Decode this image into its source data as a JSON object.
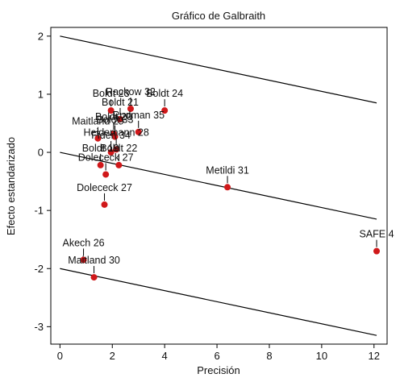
{
  "chart_data": {
    "type": "scatter",
    "title": "Gráfico de Galbraith",
    "xlabel": "Precisión",
    "ylabel": "Efecto estandarizado",
    "xlim": [
      -0.35,
      12.5
    ],
    "ylim": [
      -3.3,
      2.15
    ],
    "x_ticks": [
      0,
      2,
      4,
      6,
      8,
      10,
      12
    ],
    "y_ticks": [
      -3,
      -2,
      -1,
      0,
      1,
      2
    ],
    "grid": false,
    "colors": {
      "point": "#d0181a",
      "line": "#000000",
      "frame": "#000000"
    },
    "lines": [
      {
        "x": [
          0,
          12.1
        ],
        "y": [
          2.0,
          0.85
        ]
      },
      {
        "x": [
          0,
          12.1
        ],
        "y": [
          0.0,
          -1.15
        ]
      },
      {
        "x": [
          0,
          12.1
        ],
        "y": [
          -2.0,
          -3.15
        ]
      }
    ],
    "points": [
      {
        "label": "Boldt 23",
        "x": 1.95,
        "y": 0.72
      },
      {
        "label": "Rackow 32",
        "x": 2.7,
        "y": 0.75
      },
      {
        "label": "Boldt 24",
        "x": 4.0,
        "y": 0.72
      },
      {
        "label": "Boldt 21",
        "x": 2.3,
        "y": 0.57
      },
      {
        "label": "Rudman 35",
        "x": 3.0,
        "y": 0.35
      },
      {
        "label": "Maitland 29",
        "x": 1.45,
        "y": 0.24
      },
      {
        "label": "Boldt 20",
        "x": 2.05,
        "y": 0.32
      },
      {
        "label": "Boldt 33",
        "x": 2.1,
        "y": 0.27
      },
      {
        "label": "Heidemann 28",
        "x": 2.15,
        "y": 0.05
      },
      {
        "label": "Fiden 34",
        "x": 1.95,
        "y": 0.0
      },
      {
        "label": "Boldt 19",
        "x": 1.55,
        "y": -0.22
      },
      {
        "label": "Boldt 22",
        "x": 2.25,
        "y": -0.22
      },
      {
        "label": "Dolececk 27",
        "x": 1.75,
        "y": -0.38
      },
      {
        "label": "Dolececk 27",
        "x": 1.7,
        "y": -0.9
      },
      {
        "label": "Metildi 31",
        "x": 6.4,
        "y": -0.6
      },
      {
        "label": "SAFE 4",
        "x": 12.1,
        "y": -1.7
      },
      {
        "label": "Akech 26",
        "x": 0.9,
        "y": -1.85
      },
      {
        "label": "Maitland 30",
        "x": 1.3,
        "y": -2.15
      }
    ]
  }
}
